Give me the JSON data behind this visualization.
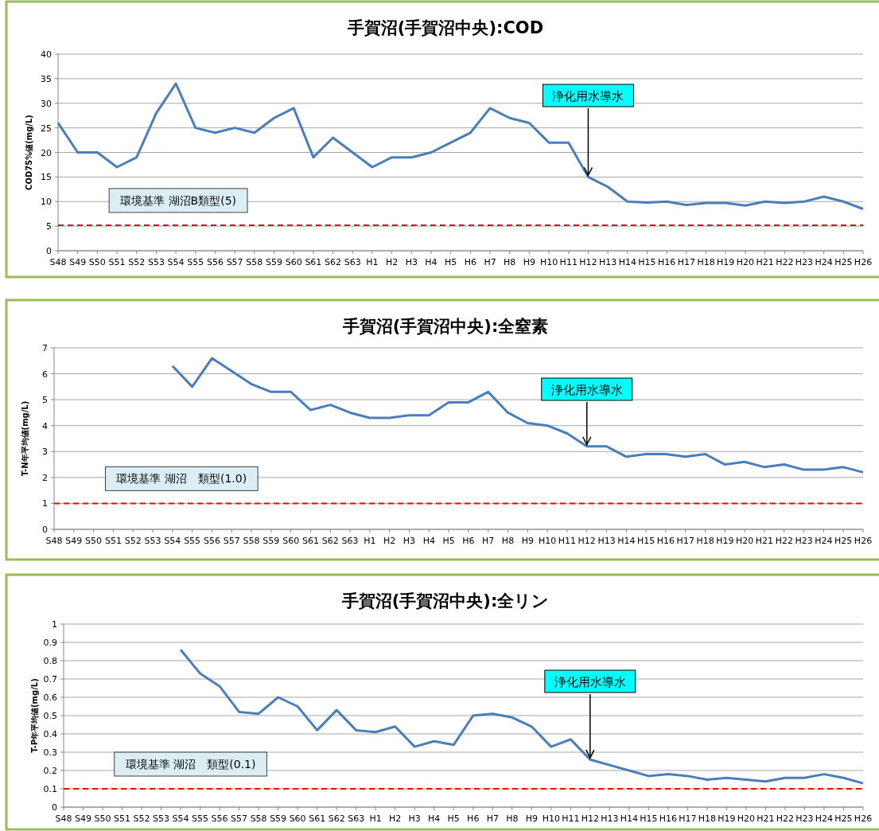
{
  "chart_data": [
    {
      "type": "line",
      "title": "手賀沼(手賀沼中央):COD",
      "ylabel": "COD75%値(mg/L)",
      "categories": [
        "S48",
        "S49",
        "S50",
        "S51",
        "S52",
        "S53",
        "S54",
        "S55",
        "S56",
        "S57",
        "S58",
        "S59",
        "S60",
        "S61",
        "S62",
        "S63",
        "H1",
        "H2",
        "H3",
        "H4",
        "H5",
        "H6",
        "H7",
        "H8",
        "H9",
        "H10",
        "H11",
        "H12",
        "H13",
        "H14",
        "H15",
        "H16",
        "H17",
        "H18",
        "H19",
        "H20",
        "H21",
        "H22",
        "H23",
        "H24",
        "H25",
        "H26"
      ],
      "series": [
        {
          "color": "#4a7ebb",
          "values": [
            26,
            20,
            20,
            17,
            19,
            28,
            34,
            25,
            24,
            25,
            24,
            27,
            29,
            19,
            23,
            20,
            17,
            19,
            19,
            20,
            22,
            24,
            29,
            27,
            26,
            22,
            22,
            15,
            13,
            10,
            9.8,
            10,
            9.3,
            9.7,
            9.7,
            9.2,
            10,
            9.7,
            10,
            11,
            10,
            8.5
          ]
        }
      ],
      "ylim": [
        0,
        40
      ],
      "yticks": [
        0,
        5,
        10,
        15,
        20,
        25,
        30,
        35,
        40
      ],
      "grid": "y",
      "ref_lines": [
        {
          "axis": "y",
          "value": 5.2,
          "label": "環境基準 湖沼B類型(5)",
          "color": "#ff0000",
          "line_style": "dashed"
        }
      ],
      "annotations": [
        {
          "text": "浄化用水導水",
          "x": "H12",
          "y": 15
        }
      ]
    },
    {
      "type": "line",
      "title": "手賀沼(手賀沼中央):全窒素",
      "ylabel": "T-N年平均値(mg/L)",
      "categories": [
        "S48",
        "S49",
        "S50",
        "S51",
        "S52",
        "S53",
        "S54",
        "S55",
        "S56",
        "S57",
        "S58",
        "S59",
        "S60",
        "S61",
        "S62",
        "S63",
        "H1",
        "H2",
        "H3",
        "H4",
        "H5",
        "H6",
        "H7",
        "H8",
        "H9",
        "H10",
        "H11",
        "H12",
        "H13",
        "H14",
        "H15",
        "H16",
        "H17",
        "H18",
        "H19",
        "H20",
        "H21",
        "H22",
        "H23",
        "H24",
        "H25",
        "H26"
      ],
      "series": [
        {
          "color": "#4a7ebb",
          "values": [
            null,
            null,
            null,
            null,
            null,
            null,
            6.3,
            5.5,
            6.6,
            6.1,
            5.6,
            5.3,
            5.3,
            4.6,
            4.8,
            4.5,
            4.3,
            4.3,
            4.4,
            4.4,
            4.9,
            4.9,
            5.3,
            4.5,
            4.1,
            4.0,
            3.7,
            3.2,
            3.2,
            2.8,
            2.9,
            2.9,
            2.8,
            2.9,
            2.5,
            2.6,
            2.4,
            2.5,
            2.3,
            2.3,
            2.4,
            2.2
          ]
        }
      ],
      "ylim": [
        0,
        7
      ],
      "yticks": [
        0,
        1,
        2,
        3,
        4,
        5,
        6,
        7
      ],
      "grid": "y",
      "ref_lines": [
        {
          "axis": "y",
          "value": 1,
          "label": "環境基準 湖沼　類型(1.0)",
          "color": "#ff0000",
          "line_style": "dashed"
        }
      ],
      "annotations": [
        {
          "text": "浄化用水導水",
          "x": "H12",
          "y": 3.2
        }
      ]
    },
    {
      "type": "line",
      "title": "手賀沼(手賀沼中央):全リン",
      "ylabel": "T-P年平均値(mg/L)",
      "categories": [
        "S48",
        "S49",
        "S50",
        "S51",
        "S52",
        "S53",
        "S54",
        "S55",
        "S56",
        "S57",
        "S58",
        "S59",
        "S60",
        "S61",
        "S62",
        "S63",
        "H1",
        "H2",
        "H3",
        "H4",
        "H5",
        "H6",
        "H7",
        "H8",
        "H9",
        "H10",
        "H11",
        "H12",
        "H13",
        "H14",
        "H15",
        "H16",
        "H17",
        "H18",
        "H19",
        "H20",
        "H21",
        "H22",
        "H23",
        "H24",
        "H25",
        "H26"
      ],
      "series": [
        {
          "color": "#4a7ebb",
          "values": [
            null,
            null,
            null,
            null,
            null,
            null,
            0.86,
            0.73,
            0.66,
            0.52,
            0.51,
            0.6,
            0.55,
            0.42,
            0.53,
            0.42,
            0.41,
            0.44,
            0.33,
            0.36,
            0.34,
            0.5,
            0.51,
            0.49,
            0.44,
            0.33,
            0.37,
            0.26,
            0.23,
            0.2,
            0.17,
            0.18,
            0.17,
            0.15,
            0.16,
            0.15,
            0.14,
            0.16,
            0.16,
            0.18,
            0.16,
            0.13
          ]
        }
      ],
      "ylim": [
        0,
        1
      ],
      "yticks": [
        0,
        0.1,
        0.2,
        0.3,
        0.4,
        0.5,
        0.6,
        0.7,
        0.8,
        0.9,
        1
      ],
      "grid": "y",
      "ref_lines": [
        {
          "axis": "y",
          "value": 0.1,
          "label": "環境基準 湖沼　類型(0.1)",
          "color": "#ff0000",
          "line_style": "dashed"
        }
      ],
      "annotations": [
        {
          "text": "浄化用水導水",
          "x": "H12",
          "y": 0.26
        }
      ]
    }
  ]
}
